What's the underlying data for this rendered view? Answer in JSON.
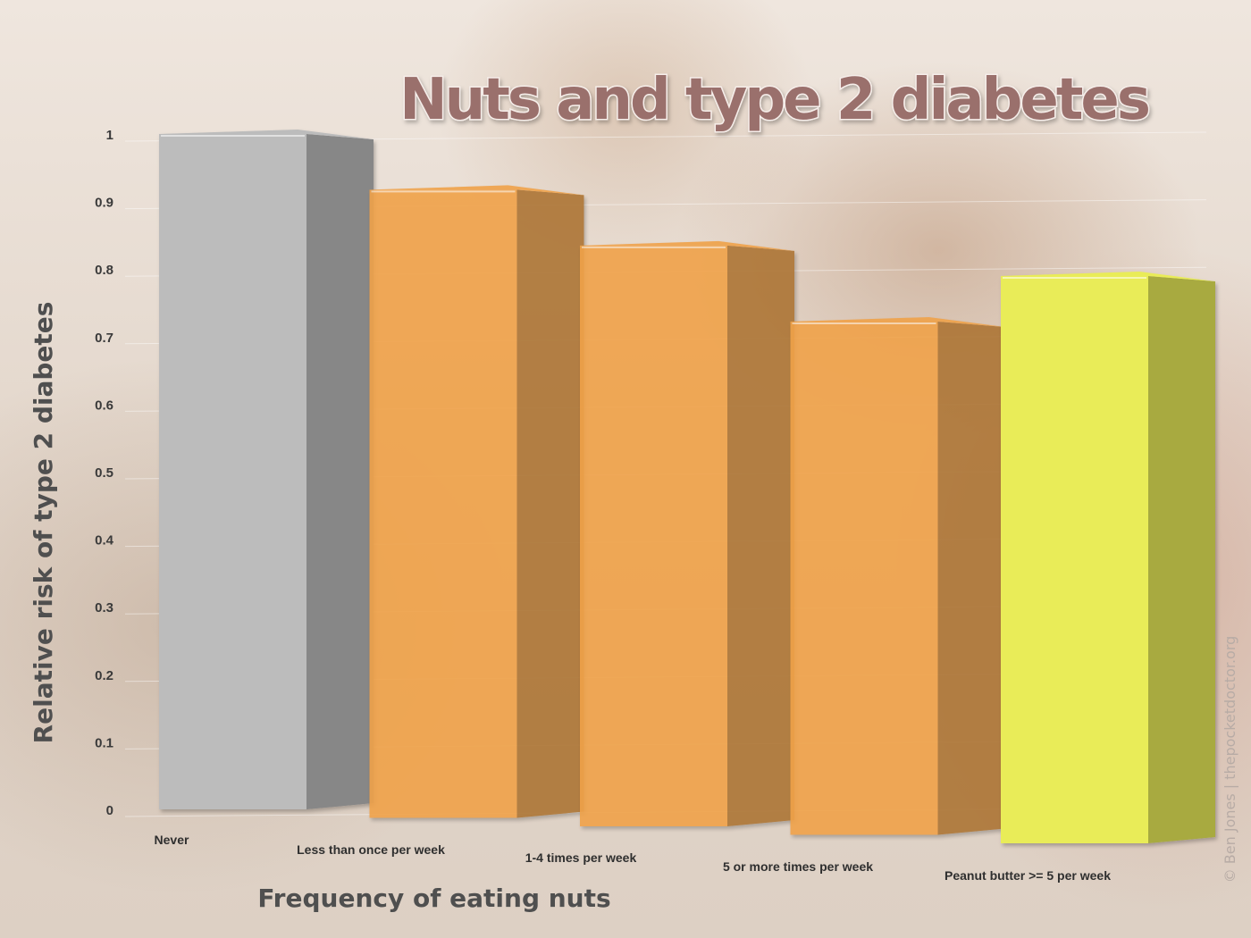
{
  "chart_data": {
    "type": "bar",
    "title": "Nuts and type 2 diabetes",
    "xlabel": "Frequency of eating nuts",
    "ylabel": "Relative risk of type 2 diabetes",
    "ylim": [
      0,
      1
    ],
    "yticks": [
      "0",
      "0.1",
      "0.2",
      "0.3",
      "0.4",
      "0.5",
      "0.6",
      "0.7",
      "0.8",
      "0.9",
      "1"
    ],
    "categories": [
      "Never",
      "Less than once per week",
      "1-4 times per week",
      "5 or more times per week",
      "Peanut butter >= 5 per week"
    ],
    "values": [
      1.0,
      0.93,
      0.86,
      0.76,
      0.84
    ],
    "grid": true,
    "bar_colors": [
      "#bcbcbc",
      "#f0a24a",
      "#f0a24a",
      "#f0a24a",
      "#e9ec58"
    ],
    "credit": "© Ben Jones | thepocketdoctor.org"
  }
}
